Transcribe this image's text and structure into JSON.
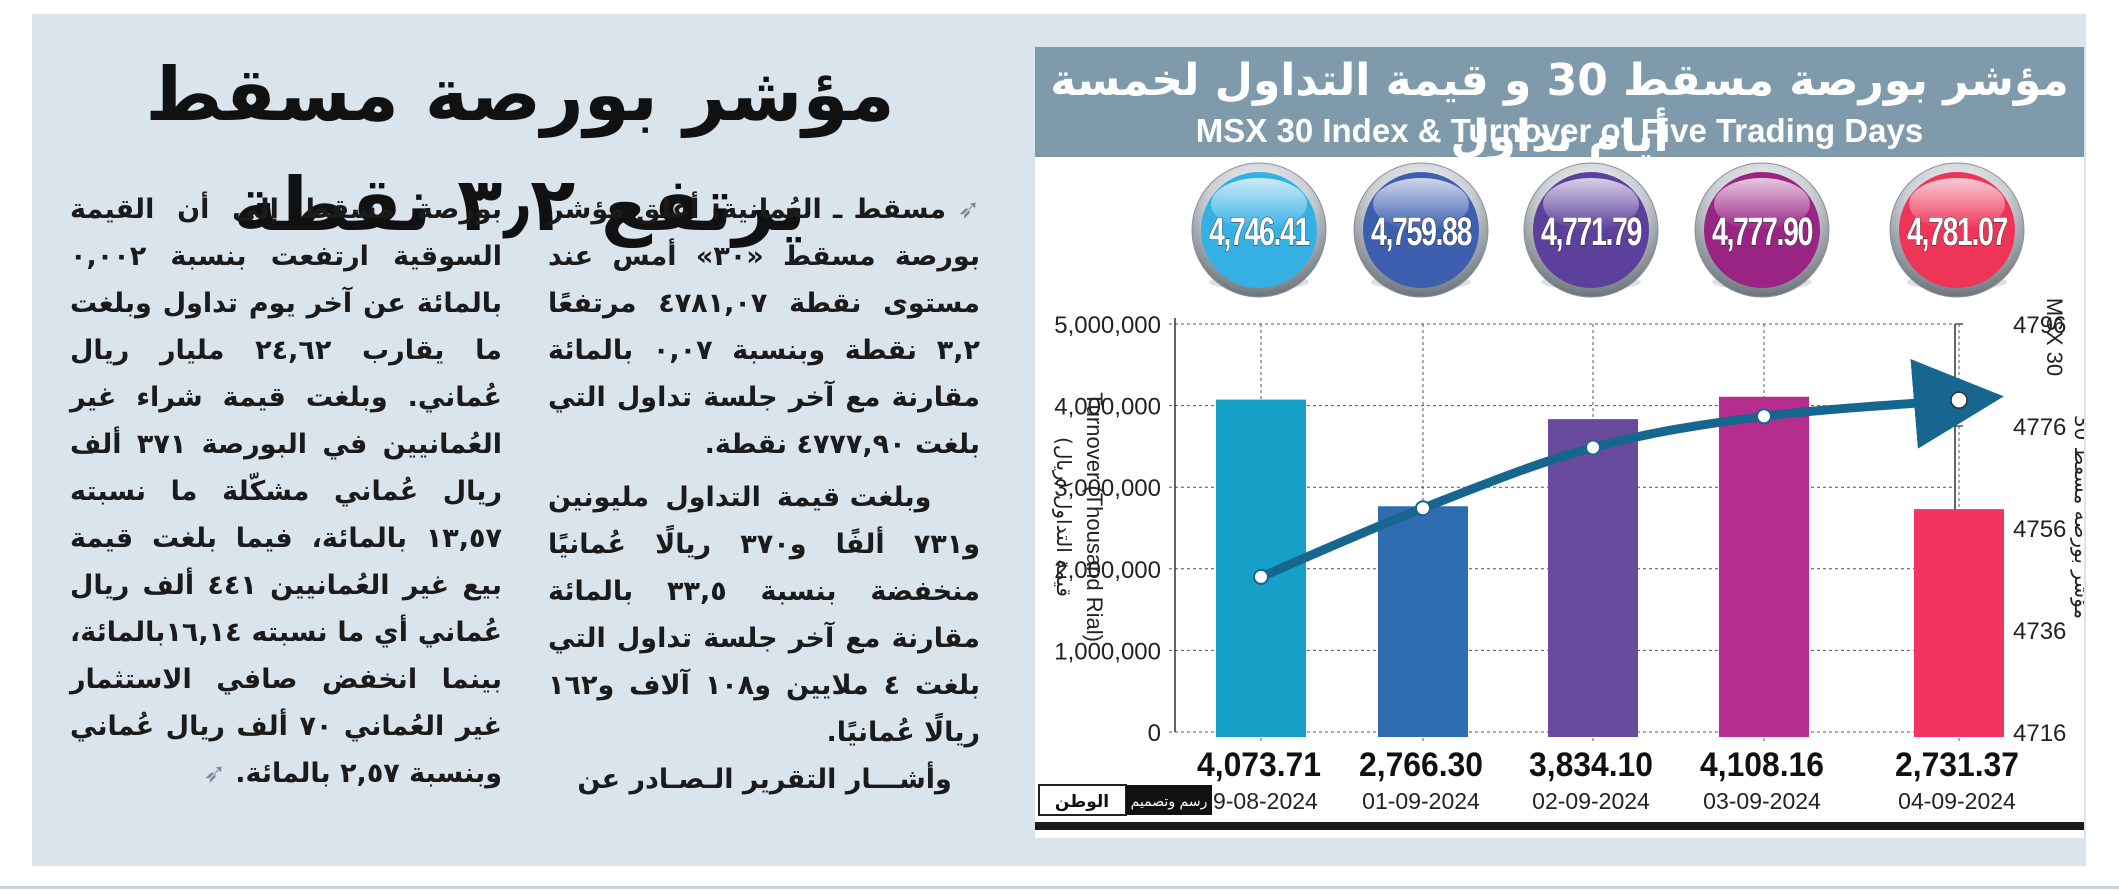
{
  "article": {
    "headline": "مؤشر بورصة مسقط يرتفع ٣٫٢ نقطة",
    "columns": {
      "right": [
        "مسقط ـ العُمانية: أغلق مؤشر بورصة مسقط «٣٠» أمس عند مستوى نقطة ٤٧٨١,٠٧ مرتفعًا ٣,٢ نقطة وبنسبة ٠,٠٧ بالمائة مقارنة مع آخر جلسة تداول التي بلغت ٤٧٧٧,٩٠ نقطة.",
        "وبلغت قيمة التداول مليونين و٧٣١ ألفًا و٣٧٠ ريالًا عُمانيًا منخفضة بنسبة ٣٣,٥ بالمائة مقارنة مع آخر جلسة تداول التي بلغت ٤ ملايين و١٠٨ آلاف و١٦٢ ريالًا عُمانيًا.",
        "وأشـــار التقرير الـصـادر عن"
      ],
      "left": [
        "بورصة مسقط إلى أن القيمة السوقية ارتفعت بنسبة ٠,٠٠٢ بالمائة عن آخر يوم تداول وبلغت ما يقارب ٢٤,٦٢ مليار ريال عُماني. وبلغت قيمة شراء غير العُمانيين في البورصة ٣٧١ ألف ريال عُماني مشكّلة ما نسبته ١٣,٥٧ بالمائة، فيما بلغت قيمة بيع غير العُمانيين ٤٤١ ألف ريال عُماني أي ما نسبته ١٦,١٤بالمائة، بينما انخفض صافي الاستثمار غير العُماني ٧٠ ألف ريال عُماني وبنسبة ٢,٥٧ بالمائة."
      ]
    }
  },
  "chart_title_ar": "مؤشر بورصة مسقط 30 و قيمة التداول لخمسة أيام تداول",
  "chart_title_en": "MSX 30 Index & Turnover of Five Trading Days",
  "credit": {
    "logo": "الوطن",
    "label": "رسم وتصميم"
  },
  "colors": {
    "panel_bg": "#dae4ec",
    "title_bar": "#7f9bab",
    "index_line": "#17668f",
    "bars": [
      "#16a0c8",
      "#2f6db0",
      "#6a4a9c",
      "#b52e8e",
      "#f23560"
    ],
    "balls": [
      "#35b0e4",
      "#3e5fb0",
      "#5d3f9c",
      "#9a2483",
      "#ee3457"
    ]
  },
  "chart_data": {
    "type": "bar+line",
    "categories": [
      "29-08-2024",
      "01-09-2024",
      "02-09-2024",
      "03-09-2024",
      "04-09-2024"
    ],
    "turnover_labels": [
      "4,073.71",
      "2,766.30",
      "3,834.10",
      "4,108.16",
      "2,731.37"
    ],
    "series": [
      {
        "axis": "left",
        "kind": "bar",
        "values": [
          4073710,
          2766300,
          3834100,
          4108160,
          2731370
        ]
      },
      {
        "axis": "right",
        "kind": "line",
        "values": [
          4746.41,
          4759.88,
          4771.79,
          4777.9,
          4781.07
        ]
      }
    ],
    "index_labels": [
      "4,746.41",
      "4,759.88",
      "4,771.79",
      "4,777.90",
      "4,781.07"
    ],
    "ylabel_left_en": "Turnover (Thousand Rial)",
    "ylabel_left_ar": "قيمة التداول (ريال)",
    "ylabel_right_en": "MSX 30",
    "ylabel_right_ar": "مؤشر بورصة مسقط 30",
    "ylim_left": [
      0,
      5000000
    ],
    "ylim_right": [
      4716,
      4796
    ],
    "yticks_left": [
      "0",
      "1,000,000",
      "2,000,000",
      "3,000,000",
      "4,000,000",
      "5,000,000"
    ],
    "yticks_right": [
      "4716",
      "4736",
      "4756",
      "4776",
      "4796"
    ],
    "grid": "dotted"
  }
}
